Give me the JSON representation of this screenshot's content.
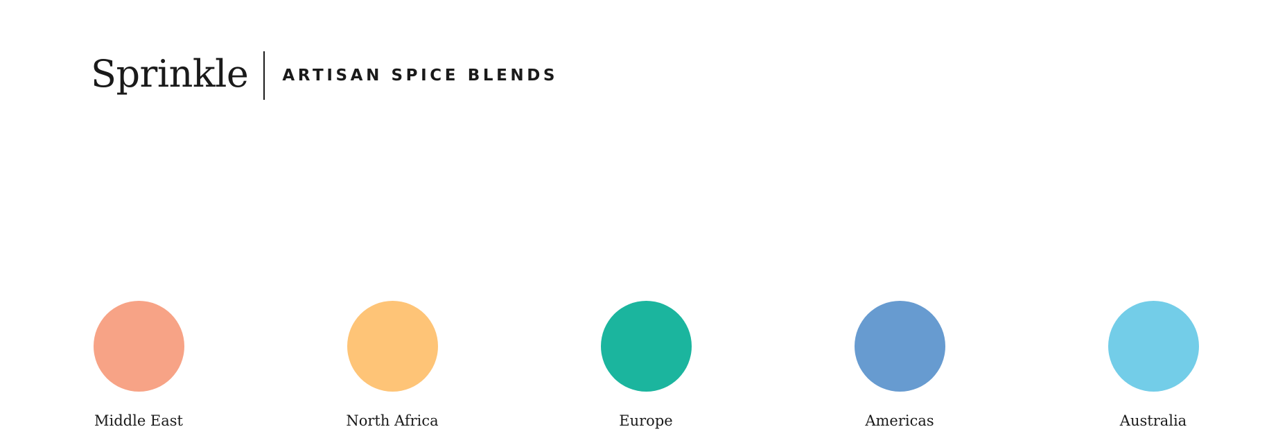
{
  "header": {
    "brand": "Sprinkle",
    "tagline": "ARTISAN SPICE BLENDS"
  },
  "regions": [
    {
      "label": "Middle East",
      "color": "#F7A386"
    },
    {
      "label": "North Africa",
      "color": "#FEC477"
    },
    {
      "label": "Europe",
      "color": "#1BB59E"
    },
    {
      "label": "Americas",
      "color": "#679BD0"
    },
    {
      "label": "Australia",
      "color": "#73CDE8"
    }
  ]
}
